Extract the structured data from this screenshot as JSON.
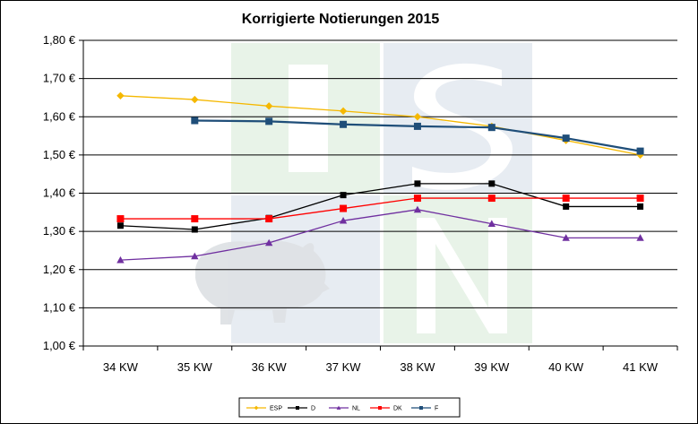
{
  "chart_data": {
    "type": "line",
    "title": "Korrigierte Notierungen 2015",
    "xlabel": "",
    "ylabel": "",
    "categories": [
      "34 KW",
      "35 KW",
      "36 KW",
      "37 KW",
      "38 KW",
      "39 KW",
      "40 KW",
      "41 KW"
    ],
    "ylim": [
      1.0,
      1.8
    ],
    "yticks": [
      1.0,
      1.1,
      1.2,
      1.3,
      1.4,
      1.5,
      1.6,
      1.7,
      1.8
    ],
    "ytick_labels": [
      "1,00 €",
      "1,10 €",
      "1,20 €",
      "1,30 €",
      "1,40 €",
      "1,50 €",
      "1,60 €",
      "1,70 €",
      "1,80 €"
    ],
    "grid": "horizontal",
    "legend_position": "bottom",
    "series": [
      {
        "name": "ESP",
        "color": "#f5b800",
        "marker": "diamond",
        "values": [
          1.655,
          1.645,
          1.628,
          1.615,
          1.6,
          1.575,
          1.538,
          1.5
        ]
      },
      {
        "name": "D",
        "color": "#000000",
        "marker": "square",
        "values": [
          1.315,
          1.305,
          1.335,
          1.395,
          1.425,
          1.425,
          1.365,
          1.365
        ]
      },
      {
        "name": "NL",
        "color": "#7030a0",
        "marker": "triangle",
        "values": [
          1.225,
          1.235,
          1.27,
          1.328,
          1.357,
          1.32,
          1.283,
          1.283
        ]
      },
      {
        "name": "DK",
        "color": "#ff0000",
        "marker": "square",
        "values": [
          1.333,
          1.333,
          1.333,
          1.36,
          1.387,
          1.387,
          1.387,
          1.387
        ]
      },
      {
        "name": "F",
        "color": "#1f4e79",
        "marker": "square",
        "values": [
          null,
          1.59,
          1.588,
          1.58,
          1.575,
          1.572,
          1.544,
          1.51
        ]
      }
    ]
  }
}
